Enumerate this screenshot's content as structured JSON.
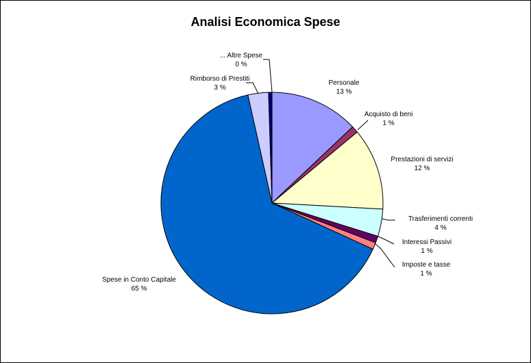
{
  "chart_data": {
    "type": "pie",
    "title": "Analisi Economica Spese",
    "slices": [
      {
        "label": "Personale",
        "value": 13,
        "percent_label": "13 %",
        "color": "#9999FF"
      },
      {
        "label": "Acquisto di beni",
        "value": 1,
        "percent_label": "1 %",
        "color": "#993366"
      },
      {
        "label": "Prestazioni di servizi",
        "value": 12,
        "percent_label": "12 %",
        "color": "#FFFFCC"
      },
      {
        "label": "Trasferimenti correnti",
        "value": 4,
        "percent_label": "4 %",
        "color": "#CCFFFF"
      },
      {
        "label": "Interessi Passivi",
        "value": 1,
        "percent_label": "1 %",
        "color": "#660066"
      },
      {
        "label": "Imposte e tasse",
        "value": 1,
        "percent_label": "1 %",
        "color": "#FF8080"
      },
      {
        "label": "Spese in Conto Capitale",
        "value": 65,
        "percent_label": "65 %",
        "color": "#0066CC"
      },
      {
        "label": "Rimborso di Prestiti",
        "value": 3,
        "percent_label": "3 %",
        "color": "#CCCCFF"
      },
      {
        "label": "... Altre Spese",
        "value": 0.5,
        "percent_label": "0 %",
        "color": "#000080"
      }
    ]
  }
}
